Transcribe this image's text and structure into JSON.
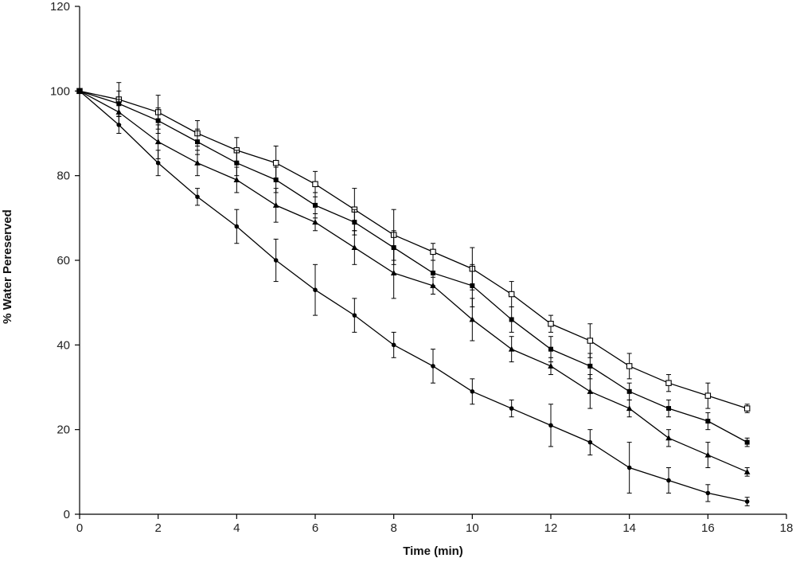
{
  "chart_data": {
    "type": "line",
    "title": "",
    "xlabel": "Time (min)",
    "ylabel": "% Water Pereserved",
    "xlim": [
      0,
      18
    ],
    "ylim": [
      0,
      120
    ],
    "xticks": [
      "0",
      "2",
      "4",
      "6",
      "8",
      "10",
      "12",
      "14",
      "16",
      "18"
    ],
    "yticks": [
      "0",
      "20",
      "40",
      "60",
      "80",
      "100",
      "120"
    ],
    "grid": false,
    "legend": "none",
    "x": [
      0,
      1,
      2,
      3,
      4,
      5,
      6,
      7,
      8,
      9,
      10,
      11,
      12,
      13,
      14,
      15,
      16,
      17
    ],
    "series": [
      {
        "marker": "open-square",
        "values": [
          100,
          98,
          95,
          90,
          86,
          83,
          78,
          72,
          66,
          62,
          58,
          52,
          45,
          41,
          35,
          31,
          28,
          25
        ],
        "errors": [
          0,
          4,
          4,
          3,
          3,
          4,
          3,
          5,
          6,
          2,
          5,
          3,
          2,
          4,
          3,
          2,
          3,
          1
        ]
      },
      {
        "marker": "filled-square",
        "values": [
          100,
          97,
          93,
          88,
          83,
          79,
          73,
          69,
          63,
          57,
          54,
          46,
          39,
          35,
          29,
          25,
          22,
          17
        ],
        "errors": [
          0,
          3,
          3,
          3,
          3,
          3,
          3,
          3,
          4,
          3,
          5,
          3,
          3,
          3,
          2,
          2,
          2,
          1
        ]
      },
      {
        "marker": "filled-triangle",
        "values": [
          100,
          95,
          88,
          83,
          79,
          73,
          69,
          63,
          57,
          54,
          46,
          39,
          35,
          29,
          25,
          18,
          14,
          10
        ],
        "errors": [
          0,
          3,
          4,
          3,
          3,
          4,
          2,
          4,
          6,
          2,
          5,
          3,
          2,
          4,
          2,
          2,
          3,
          1
        ]
      },
      {
        "marker": "filled-circle",
        "values": [
          100,
          92,
          83,
          75,
          68,
          60,
          53,
          47,
          40,
          35,
          29,
          25,
          21,
          17,
          11,
          8,
          5,
          3
        ],
        "errors": [
          0,
          2,
          3,
          2,
          4,
          5,
          6,
          4,
          3,
          4,
          3,
          2,
          5,
          3,
          6,
          3,
          2,
          1
        ]
      }
    ]
  }
}
